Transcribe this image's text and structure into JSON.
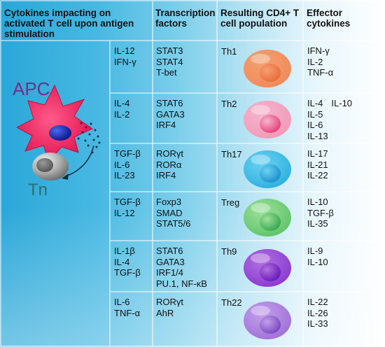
{
  "headers": {
    "col1": [
      "Cytokines impacting on",
      "activated T cell upon antigen",
      "stimulation"
    ],
    "col2": [
      "Transcription",
      "factors"
    ],
    "col3": [
      "Resulting CD4+ T",
      "cell population"
    ],
    "col4": [
      "Effector",
      "cytokines"
    ]
  },
  "labels": {
    "apc": "APC",
    "tn": "Tn"
  },
  "rows": [
    {
      "inducing": [
        "IL-12",
        "IFN-γ"
      ],
      "tf": [
        "STAT3",
        "STAT4",
        "T-bet"
      ],
      "population": "Th1",
      "effector": [
        [
          "IFN-γ"
        ],
        [
          "IL-2"
        ],
        [
          "TNF-α"
        ]
      ],
      "cell_colors": [
        "#f08a5a",
        "#ec6a3c",
        "#f4a070"
      ]
    },
    {
      "inducing": [
        "IL-4",
        "IL-2"
      ],
      "tf": [
        "STAT6",
        "GATA3",
        "IRF4"
      ],
      "population": "Th2",
      "effector": [
        [
          "IL-4",
          "IL-10"
        ],
        [
          "IL-5"
        ],
        [
          "IL-6"
        ],
        [
          "IL-13"
        ]
      ],
      "cell_colors": [
        "#f29ab8",
        "#e8407a",
        "#f5b5cc"
      ]
    },
    {
      "inducing": [
        "TGF-β",
        "IL-6",
        "IL-23"
      ],
      "tf": [
        "RORγt",
        "RORα",
        "IRF4"
      ],
      "population": "Th17",
      "effector": [
        [
          "IL-17"
        ],
        [
          "IL-21"
        ],
        [
          "IL-22"
        ]
      ],
      "cell_colors": [
        "#2cb0e0",
        "#1c8fcc",
        "#6cd2f0"
      ]
    },
    {
      "inducing": [
        "TGF-β",
        "IL-12"
      ],
      "tf": [
        "Foxp3",
        "SMAD",
        "STAT5/6"
      ],
      "population": "Treg",
      "effector": [
        [
          "IL-10"
        ],
        [
          "TGF-β"
        ],
        [
          "IL-35"
        ]
      ],
      "cell_colors": [
        "#5ec46a",
        "#36a850",
        "#9ee09a"
      ]
    },
    {
      "inducing": [
        "IL-1β",
        "IL-4",
        "TGF-β"
      ],
      "tf": [
        "STAT6",
        "GATA3",
        "IRF1/4",
        "PU.1, NF-κB"
      ],
      "population": "Th9",
      "effector": [
        [
          "IL-9"
        ],
        [
          "IL-10"
        ]
      ],
      "cell_colors": [
        "#8a3ad0",
        "#6a1ab8",
        "#b070e0"
      ]
    },
    {
      "inducing": [
        "IL-6",
        "TNF-α"
      ],
      "tf": [
        "RORγt",
        "AhR"
      ],
      "population": "Th22",
      "effector": [
        [
          "IL-22"
        ],
        [
          "IL-26"
        ],
        [
          "IL-33"
        ]
      ],
      "cell_colors": [
        "#a070d8",
        "#7a48c0",
        "#c4a0ea"
      ]
    }
  ]
}
